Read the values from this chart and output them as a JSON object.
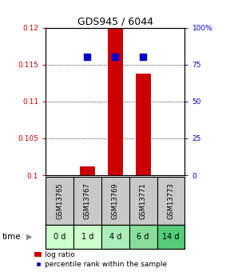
{
  "title": "GDS945 / 6044",
  "samples": [
    "GSM13765",
    "GSM13767",
    "GSM13769",
    "GSM13771",
    "GSM13773"
  ],
  "time_labels": [
    "0 d",
    "1 d",
    "4 d",
    "6 d",
    "14 d"
  ],
  "log_ratio_values": [
    null,
    0.1012,
    0.12,
    0.1138,
    null
  ],
  "log_ratio_base": 0.1,
  "percentile_values": [
    null,
    80.0,
    80.0,
    80.0,
    null
  ],
  "ylim_left": [
    0.1,
    0.12
  ],
  "ylim_right": [
    0,
    100
  ],
  "yticks_left": [
    0.1,
    0.105,
    0.11,
    0.115,
    0.12
  ],
  "yticks_right": [
    0,
    25,
    50,
    75,
    100
  ],
  "ytick_labels_left": [
    "0.1",
    "0.105",
    "0.11",
    "0.115",
    "0.12"
  ],
  "ytick_labels_right": [
    "0",
    "25",
    "50",
    "75",
    "100%"
  ],
  "grid_lines": [
    0.105,
    0.11,
    0.115
  ],
  "bar_color": "#cc0000",
  "dot_color": "#0000cc",
  "sample_box_color": "#c8c8c8",
  "time_box_colors": [
    "#ccffcc",
    "#ccffcc",
    "#aaeebb",
    "#88dd99",
    "#55cc77"
  ],
  "bar_width": 0.55,
  "dot_size": 40,
  "legend_bar_label": "log ratio",
  "legend_dot_label": "percentile rank within the sample",
  "time_arrow_label": "time",
  "left_axis_color": "#cc0000",
  "right_axis_color": "#0000cc",
  "fig_bg": "#ffffff"
}
